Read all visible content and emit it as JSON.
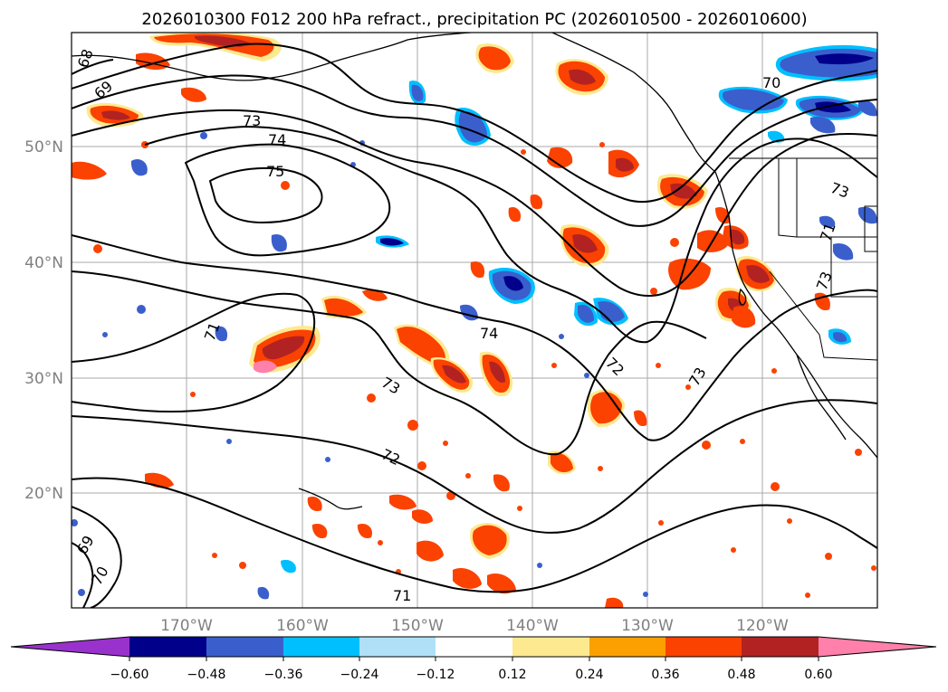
{
  "title": "2026010300 F012 200 hPa refract., precipitation PC (2026010500 - 2026010600)",
  "map": {
    "lon_ticks": [
      "170°W",
      "160°W",
      "150°W",
      "140°W",
      "130°W",
      "120°W"
    ],
    "lat_ticks": [
      "50°N",
      "40°N",
      "30°N",
      "20°N"
    ],
    "contour_labels": [
      "68",
      "69",
      "73",
      "74",
      "75",
      "70",
      "71",
      "73",
      "73",
      "71",
      "74",
      "72",
      "73",
      "73",
      "72",
      "69",
      "70",
      "71"
    ],
    "shading": {
      "positive_colors": [
        "#fde98f",
        "#fba000",
        "#fb4200",
        "#b22222",
        "#ff80aa"
      ],
      "negative_colors": [
        "#b0e0f8",
        "#00bfff",
        "#3a5fcd",
        "#00008b",
        "#9932cc"
      ]
    }
  },
  "colorbar": {
    "ticks": [
      "−0.60",
      "−0.48",
      "−0.36",
      "−0.24",
      "−0.12",
      "0.12",
      "0.24",
      "0.36",
      "0.48",
      "0.60"
    ],
    "colors": [
      "#9932cc",
      "#00008b",
      "#3a5fcd",
      "#00bfff",
      "#b0e0f8",
      "#ffffff",
      "#fde98f",
      "#fba000",
      "#fb4200",
      "#b22222",
      "#ff80aa"
    ]
  }
}
